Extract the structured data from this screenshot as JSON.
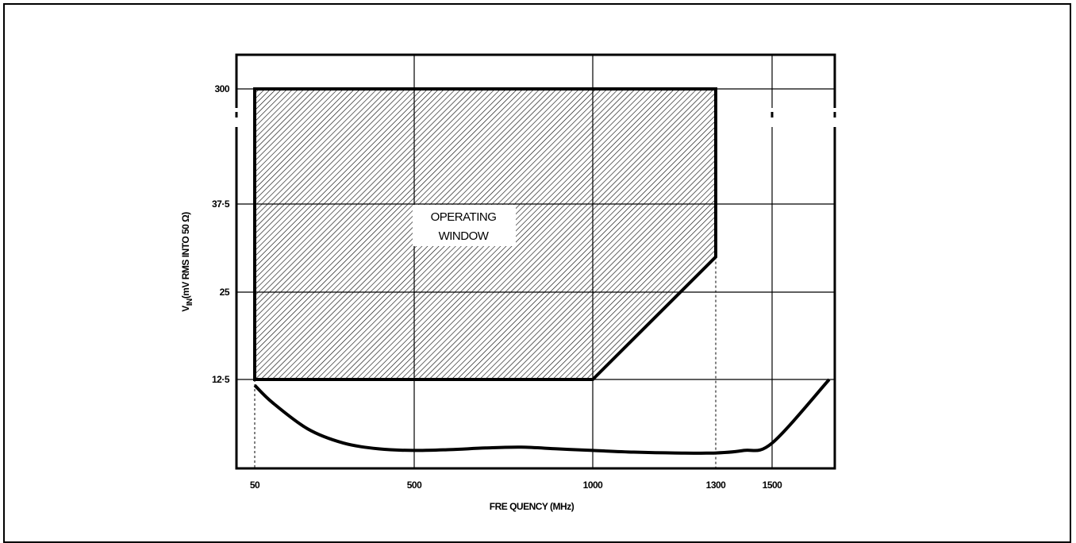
{
  "chart_data": {
    "type": "area",
    "title": "",
    "xlabel": "FRE QUENCY (MHz)",
    "ylabel_main": "V",
    "ylabel_sub": "IN",
    "ylabel_rest": "(mV RMS INTO 50 Ω)",
    "x_ticks": [
      "50",
      "500",
      "1000",
      "1300",
      "1500"
    ],
    "y_ticks": [
      "300",
      "37·5",
      "25",
      "12·5"
    ],
    "annotation_lines": [
      "OPERATING",
      "WINDOW"
    ],
    "x_axis_note": "non-linear axis; ticks at 50, 500, 1000, 1300, 1500 MHz",
    "y_axis_note": "non-linear axis with break between 37.5 and 300",
    "operating_window": {
      "name": "OPERATING WINDOW",
      "polygon": [
        {
          "x": 50,
          "y": 12.5
        },
        {
          "x": 50,
          "y": 300
        },
        {
          "x": 1300,
          "y": 300
        },
        {
          "x": 1300,
          "y": 30
        },
        {
          "x": 1000,
          "y": 12.5
        }
      ]
    },
    "sensitivity_curve": {
      "x": [
        50,
        100,
        200,
        300,
        400,
        500,
        600,
        700,
        800,
        900,
        1000,
        1100,
        1200,
        1300,
        1400,
        1500,
        1600
      ],
      "y_relative_below_12_5": [
        0.93,
        0.72,
        0.4,
        0.23,
        0.16,
        0.14,
        0.15,
        0.17,
        0.18,
        0.16,
        0.14,
        0.12,
        0.11,
        0.11,
        0.14,
        0.23,
        1.0
      ]
    }
  }
}
